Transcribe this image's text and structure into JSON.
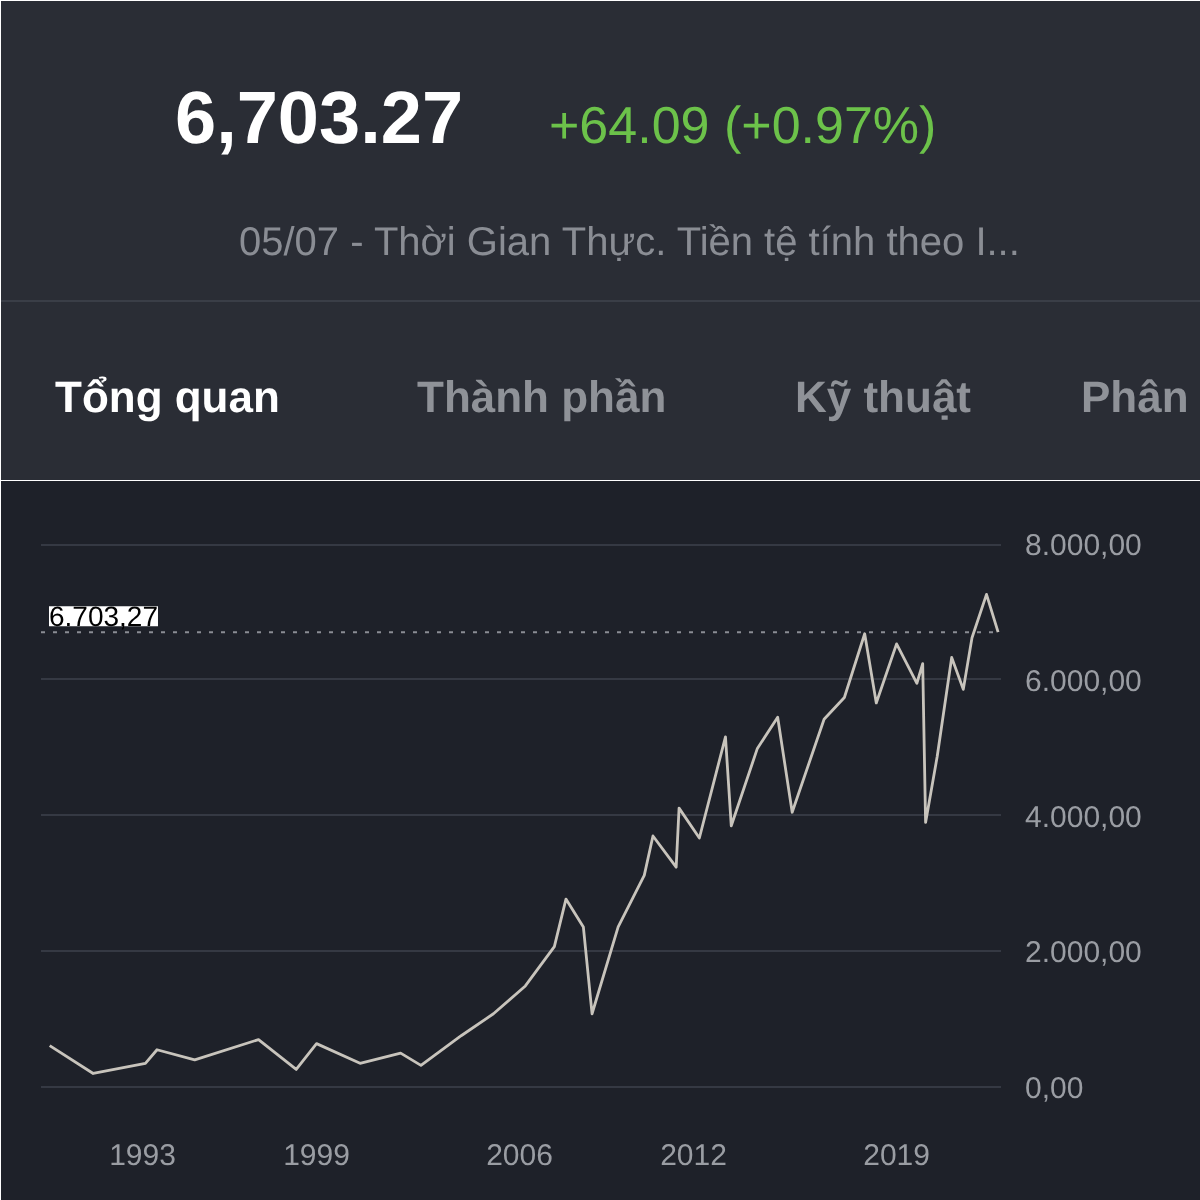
{
  "chart_data": {
    "type": "line",
    "title": "6,703.27",
    "subtitle": "+64.09 (+0.97%)",
    "annotations": [
      "05/07 - Thời Gian Thực. Tiền tệ tính theo I...",
      "Tổng quan",
      "Thành phần",
      "Kỹ thuật",
      "Phân"
    ],
    "x": [
      1989.8,
      1991.3,
      1993.1,
      1993.5,
      1994.8,
      1997.0,
      1998.3,
      1999.0,
      2000.5,
      2001.9,
      2002.6,
      2004.0,
      2005.1,
      2006.2,
      2007.2,
      2007.6,
      2008.2,
      2008.5,
      2009.4,
      2010.3,
      2010.6,
      2011.4,
      2011.5,
      2012.2,
      2013.1,
      2013.3,
      2014.2,
      2014.9,
      2015.4,
      2016.5,
      2017.2,
      2017.9,
      2018.3,
      2019.0,
      2019.7,
      2019.9,
      2020.0,
      2020.4,
      2020.9,
      2021.3,
      2021.6,
      2022.1,
      2022.5
    ],
    "series": [
      {
        "color": "#c8c4bc",
        "values": [
          610,
          200,
          350,
          550,
          400,
          700,
          260,
          640,
          350,
          500,
          320,
          760,
          1080,
          1490,
          2070,
          2770,
          2360,
          1080,
          2360,
          3120,
          3700,
          3240,
          4110,
          3670,
          5160,
          3850,
          4990,
          5450,
          4050,
          5420,
          5740,
          6680,
          5660,
          6530,
          5950,
          6240,
          3900,
          4870,
          6330,
          5860,
          6620,
          7260,
          6703.27
        ]
      }
    ],
    "xlim": [
      1989.5,
      2022.6
    ],
    "xticks": [
      1993,
      1999,
      2006,
      2012,
      2019
    ],
    "ylim": [
      -500,
      8400
    ],
    "yticks": [
      {
        "value": 0,
        "label": "0,00"
      },
      {
        "value": 2000,
        "label": "2.000,00"
      },
      {
        "value": 4000,
        "label": "4.000,00"
      },
      {
        "value": 6000,
        "label": "6.000,00"
      },
      {
        "value": 8000,
        "label": "8.000,00"
      }
    ],
    "ref_lines": [
      {
        "axis": "y",
        "value": 6703.27,
        "label": "6.703,27",
        "color": "#8a8d94",
        "line_style": "dotted"
      }
    ],
    "grid": "y",
    "marker": "none",
    "line_style": "solid"
  }
}
